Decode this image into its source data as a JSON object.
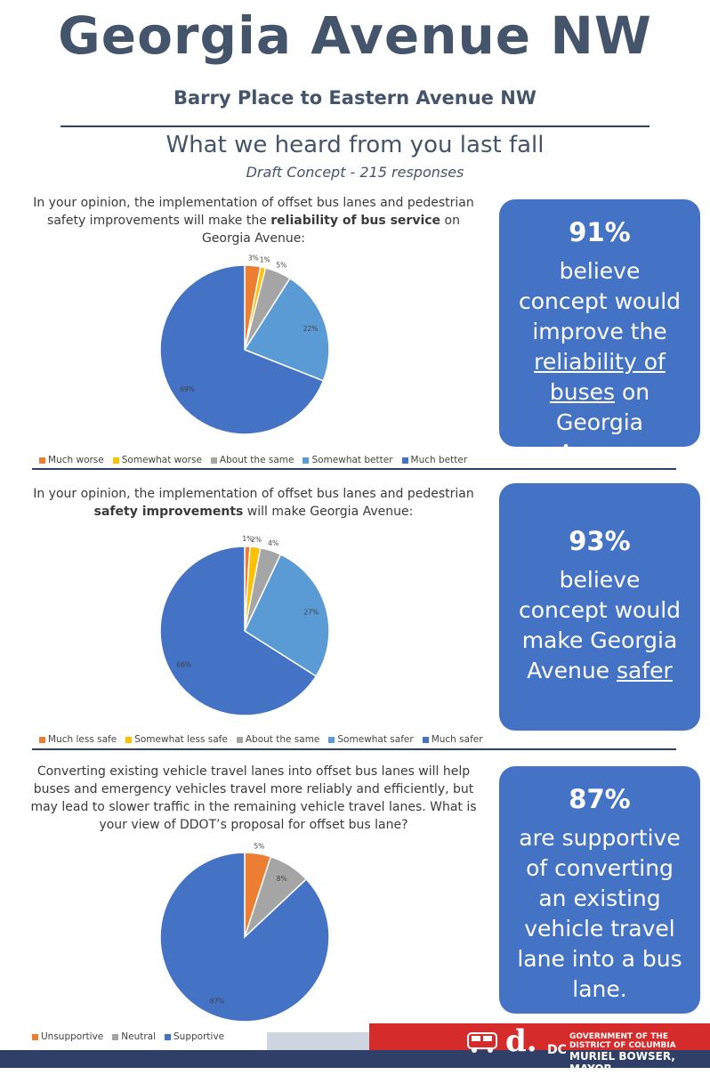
{
  "header": {
    "title": "Georgia Avenue NW",
    "subtitle": "Barry Place to Eastern Avenue NW",
    "heading": "What we heard from you last fall",
    "subheading": "Draft Concept - 215 responses"
  },
  "colors": {
    "title": "#44546a",
    "rule": "#2f3f68",
    "box": "#4472c4",
    "footer_red": "#d62b2b"
  },
  "sections": [
    {
      "question_parts": [
        "In your opinion, the implementation of offset bus lanes and pedestrian safety improvements will make the ",
        "reliability of bus service",
        " on Georgia Avenue:"
      ],
      "stat": {
        "pct": "91%",
        "parts": [
          "believe concept would improve the ",
          "reliability of buses",
          " on Georgia Avenue"
        ]
      }
    },
    {
      "question_parts": [
        "In your opinion, the implementation of offset bus lanes and pedestrian ",
        "safety improvements",
        " will make Georgia Avenue:"
      ],
      "stat": {
        "pct": "93%",
        "parts": [
          "believe concept would make Georgia Avenue ",
          "safer",
          ""
        ]
      }
    },
    {
      "question_parts": [
        "Converting existing vehicle travel lanes into offset bus lanes will help buses and emergency vehicles travel more reliably and efficiently, but may lead to slower traffic in the remaining vehicle travel lanes. What is your view of DDOT’s proposal for offset bus lane?",
        "",
        ""
      ],
      "stat": {
        "pct": "87%",
        "parts": [
          "are supportive of converting an existing vehicle travel lane into a bus lane.",
          "",
          ""
        ]
      }
    }
  ],
  "chart_data": [
    {
      "type": "pie",
      "categories": [
        "Much worse",
        "Somewhat worse",
        "About the same",
        "Somewhat better",
        "Much better"
      ],
      "values": [
        3,
        1,
        5,
        22,
        69
      ],
      "labels": [
        "3%",
        "1%",
        "5%",
        "22%",
        "69%"
      ],
      "colors": [
        "#ed7d31",
        "#ffc000",
        "#a5a5a5",
        "#5b9bd5",
        "#4472c4"
      ],
      "legend": "bottom"
    },
    {
      "type": "pie",
      "categories": [
        "Much less safe",
        "Somewhat less safe",
        "About the same",
        "Somewhat safer",
        "Much safer"
      ],
      "values": [
        1,
        2,
        4,
        27,
        66
      ],
      "labels": [
        "1%",
        "2%",
        "4%",
        "27%",
        "66%"
      ],
      "colors": [
        "#ed7d31",
        "#ffc000",
        "#a5a5a5",
        "#5b9bd5",
        "#4472c4"
      ],
      "legend": "bottom"
    },
    {
      "type": "pie",
      "categories": [
        "Unsupportive",
        "Neutral",
        "Supportive"
      ],
      "values": [
        5,
        8,
        87
      ],
      "labels": [
        "5%",
        "8%",
        "87%"
      ],
      "colors": [
        "#ed7d31",
        "#a5a5a5",
        "#4472c4"
      ],
      "legend": "bottom"
    }
  ],
  "footer": {
    "logo_letter": "d.",
    "gov_line1": "GOVERNMENT OF THE",
    "gov_line2": "DISTRICT OF COLUMBIA",
    "gov_line3": "MURIEL BOWSER, MAYOR",
    "dc": "DC"
  }
}
